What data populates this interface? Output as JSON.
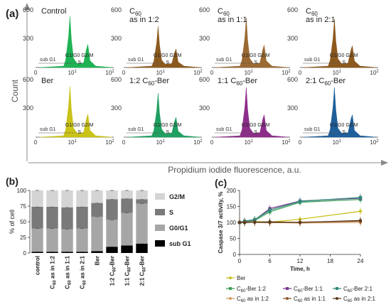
{
  "panel_a": {
    "label": "(a)",
    "y_axis_title": "Count",
    "x_axis_title": "Propidium iodide fluorescence, a.u.",
    "y_ticks": [
      "600",
      "300"
    ],
    "x_ticks": [
      "0",
      "10",
      "10"
    ],
    "x_tick_exp": "1",
    "x_tick_exp2": "2",
    "phase_labels": {
      "subg1": "sub G1",
      "g1g0g2m": "G1/G0  G2/M",
      "s": "S"
    },
    "histograms": [
      {
        "row": 0,
        "col": 0,
        "title": [
          "Control"
        ],
        "color": "#1fb255"
      },
      {
        "row": 0,
        "col": 1,
        "title": [
          "C60",
          "as in 1:2"
        ],
        "color": "#8c5a1e"
      },
      {
        "row": 0,
        "col": 2,
        "title": [
          "C60",
          "as in 1:1"
        ],
        "color": "#9a6a32"
      },
      {
        "row": 0,
        "col": 3,
        "title": [
          "C60",
          "as in 2:1"
        ],
        "color": "#8c5a1e"
      },
      {
        "row": 1,
        "col": 0,
        "title": [
          "Ber"
        ],
        "color": "#c9c31a"
      },
      {
        "row": 1,
        "col": 1,
        "title": [
          "1:2 C60-Ber"
        ],
        "color": "#1fa060"
      },
      {
        "row": 1,
        "col": 2,
        "title": [
          "1:1 C60-Ber"
        ],
        "color": "#8d2d8a"
      },
      {
        "row": 1,
        "col": 3,
        "title": [
          "2:1 C60-Ber"
        ],
        "color": "#1f5f9a"
      }
    ]
  },
  "panel_b": {
    "label": "(b)",
    "chart_data": {
      "type": "bar",
      "stacked": true,
      "categories": [
        "control",
        "C60 as in 1:2",
        "C60 as in 1:1",
        "C60 as in 2:1",
        "Ber",
        "1:2 C60-Ber",
        "1:1 C60-Ber",
        "2:1 C60-Ber"
      ],
      "series": [
        {
          "name": "sub G1",
          "color": "#000000",
          "values": [
            2,
            2,
            2,
            2,
            3,
            10,
            12,
            15
          ]
        },
        {
          "name": "G0/G1",
          "color": "#a6a6a6",
          "values": [
            37,
            37,
            36,
            37,
            55,
            43,
            52,
            64
          ]
        },
        {
          "name": "S",
          "color": "#7a7a7a",
          "values": [
            35,
            35,
            35,
            35,
            22,
            33,
            23,
            7
          ]
        },
        {
          "name": "G2/M",
          "color": "#d4d4d4",
          "values": [
            26,
            26,
            27,
            26,
            20,
            14,
            13,
            14
          ]
        }
      ],
      "ylabel": "% of cell",
      "yticks": [
        "0",
        "25",
        "50",
        "75",
        "100"
      ],
      "ylim": [
        0,
        100
      ],
      "legend_order": [
        "G2/M",
        "S",
        "G0/G1",
        "sub G1"
      ]
    }
  },
  "panel_c": {
    "label": "(c)",
    "chart_data": {
      "type": "line",
      "x": [
        0,
        1,
        3,
        6,
        12,
        24
      ],
      "series": [
        {
          "name": "Ber",
          "color": "#c8c420",
          "marker": "circle",
          "values": [
            100,
            100,
            103,
            101,
            110,
            135
          ]
        },
        {
          "name": "C60-Ber 1:2",
          "color": "#3a9e57",
          "marker": "square",
          "values": [
            100,
            102,
            106,
            133,
            163,
            172
          ]
        },
        {
          "name": "C60-Ber 1:1",
          "color": "#7a3a93",
          "marker": "square",
          "values": [
            100,
            103,
            108,
            143,
            167,
            176
          ]
        },
        {
          "name": "C60-Ber 2:1",
          "color": "#2e8b7a",
          "marker": "square",
          "values": [
            100,
            104,
            109,
            138,
            166,
            178
          ]
        },
        {
          "name": "C60 as in 1:2",
          "color": "#d39a60",
          "marker": "circle",
          "values": [
            100,
            100,
            101,
            100,
            98,
            100
          ]
        },
        {
          "name": "C60 as in 1:1",
          "color": "#8c5a2e",
          "marker": "circle",
          "values": [
            100,
            101,
            100,
            99,
            101,
            104
          ]
        },
        {
          "name": "C60 as in 2:1",
          "color": "#5a3a1e",
          "marker": "circle",
          "values": [
            100,
            99,
            101,
            102,
            100,
            106
          ]
        }
      ],
      "xlabel": "Time, h",
      "ylabel": "Caspase 3/7 activity, %",
      "xticks": [
        "0",
        "6",
        "12",
        "18",
        "24"
      ],
      "yticks": [
        "0",
        "50",
        "100",
        "150",
        "200"
      ],
      "xlim": [
        0,
        24
      ],
      "ylim": [
        0,
        200
      ]
    }
  }
}
